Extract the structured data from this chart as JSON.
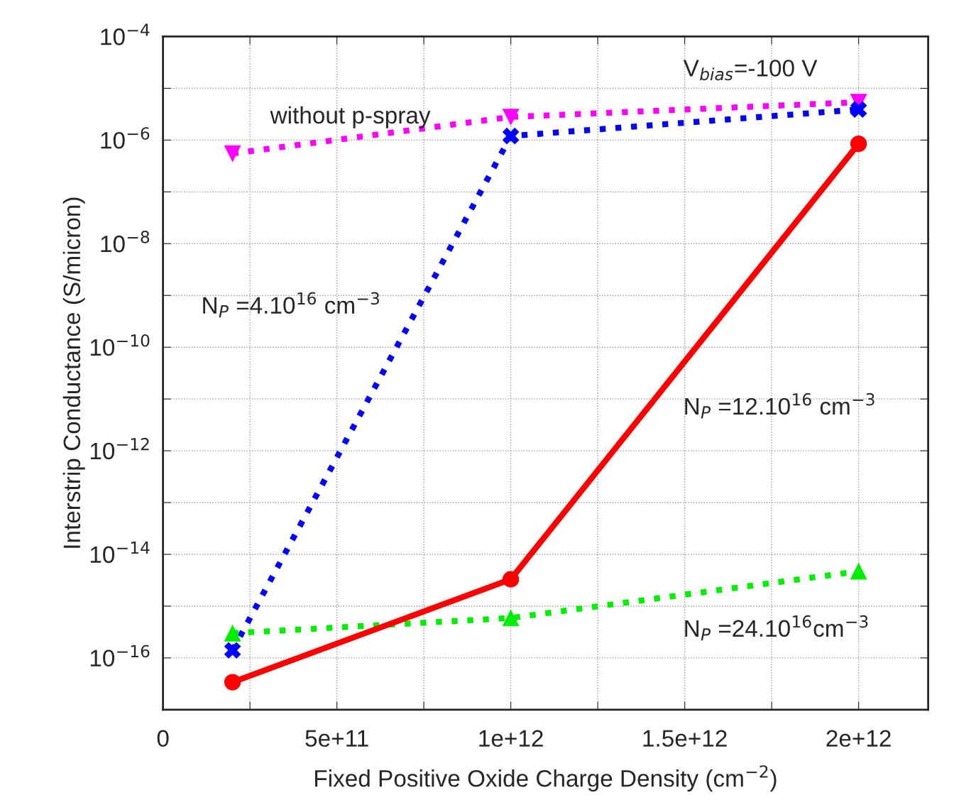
{
  "chart_data": {
    "type": "line",
    "xlabel": "Fixed Positive Oxide Charge Density (cm$^{−2}$)",
    "ylabel": "Interstrip Conductance (S/micron)",
    "log": "y",
    "grid": true,
    "x": [
      200000000000.0,
      1000000000000.0,
      2000000000000.0
    ],
    "xlim": [
      0,
      2200000000000.0
    ],
    "xticks": [
      0,
      {
        "value": 250000000000.0,
        "label": null
      },
      {
        "value": 500000000000.0,
        "label": "5e+11"
      },
      {
        "value": 750000000000.0,
        "label": null
      },
      {
        "value": 1000000000000.0,
        "label": "1e+12"
      },
      {
        "value": 1250000000000.0,
        "label": null
      },
      {
        "value": 1500000000000.0,
        "label": "1.5e+12"
      },
      {
        "value": 1750000000000.0,
        "label": null
      },
      {
        "value": 2000000000000.0,
        "label": "2e+12"
      }
    ],
    "ylim": [
      1e-17,
      0.0001
    ],
    "yticks": [
      {
        "value": 1e-16,
        "label": "10$^{−16}$"
      },
      {
        "value": 1e-15,
        "label": null
      },
      {
        "value": 1e-14,
        "label": "10$^{−14}$"
      },
      {
        "value": 1e-13,
        "label": null
      },
      {
        "value": 1e-12,
        "label": "10$^{−12}$"
      },
      {
        "value": 1e-11,
        "label": null
      },
      {
        "value": 1e-10,
        "label": "10$^{−10}$"
      },
      {
        "value": 1e-09,
        "label": null
      },
      {
        "value": 1e-08,
        "label": "10$^{−8}$"
      },
      {
        "value": 1e-07,
        "label": null
      },
      {
        "value": 1e-06,
        "label": "10$^{−6}$"
      },
      {
        "value": 1e-05,
        "label": null
      },
      {
        "value": 0.0001,
        "label": "10$^{−4}$"
      }
    ],
    "series": [
      {
        "color": "#ff00ff",
        "marker": "triangle_down",
        "line_style": "dotted",
        "values": [
          5.5e-07,
          2.8e-06,
          5.4e-06
        ]
      },
      {
        "color": "#0000ff",
        "marker": "cross",
        "line_style": "dotted",
        "values": [
          1.4e-16,
          1.2e-06,
          3.9e-06
        ]
      },
      {
        "color": "#00ee00",
        "marker": "triangle",
        "line_style": "dotted",
        "values": [
          3e-16,
          5.9e-16,
          4.7e-15
        ]
      },
      {
        "color": "#ff0000",
        "marker": "circle",
        "line_style": "solid",
        "values": [
          3.4e-17,
          3.3e-15,
          8.5e-07
        ]
      }
    ],
    "annotations": [
      "V$_{bias}$=-100 V",
      "without p-spray",
      "N$_{P}$ =4.10$^{16}$ cm$^{−3}$",
      "N$_{P}$ =12.10$^{16}$ cm$^{−3}$",
      "N$_{P}$ =24.10$^{16}$cm$^{−3}$"
    ]
  }
}
